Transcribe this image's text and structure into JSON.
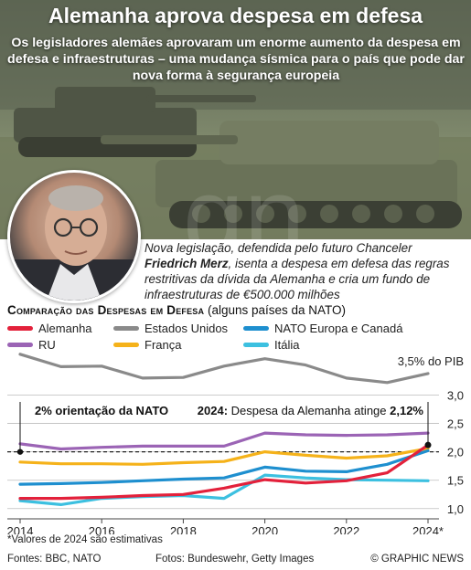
{
  "header": {
    "title": "Alemanha aprova despesa em defesa",
    "subtitle": "Os legisladores alemães aprovaram um enorme aumento da despesa em defesa e infraestruturas – uma mudança sísmica para o país que pode dar nova forma à segurança europeia"
  },
  "caption": {
    "part1": "Nova legislação, defendida pelo futuro Chanceler ",
    "name": "Friedrich Merz",
    "part2": ", isenta a despesa em defesa das regras restritivas da dívida da Alemanha e cria um fundo de infraestruturas de €500.000 milhões"
  },
  "comparison": {
    "title": "Comparação das Despesas em Defesa",
    "subtitle": " (alguns países da NATO)"
  },
  "annotations": {
    "nato_guideline": "2% orientação da NATO",
    "germany_prefix": "2024:",
    "germany_text": " Despesa da Alemanha atinge ",
    "germany_value": "2,12%",
    "gdp_label": "3,5% do PIB"
  },
  "chart_data": {
    "type": "line",
    "x": [
      2014,
      2015,
      2016,
      2017,
      2018,
      2019,
      2020,
      2021,
      2022,
      2023,
      2024
    ],
    "x_ticks": [
      "2014",
      "2016",
      "2018",
      "2020",
      "2022",
      "2024*"
    ],
    "y_ticks": [
      "3,0",
      "2,5",
      "2,0",
      "1,5",
      "1,0"
    ],
    "ylim": [
      0.9,
      3.7
    ],
    "reference_line": 2.0,
    "series": [
      {
        "name": "Alemanha",
        "color": "#e3213b",
        "values": [
          1.18,
          1.18,
          1.2,
          1.23,
          1.25,
          1.36,
          1.51,
          1.45,
          1.49,
          1.63,
          2.12
        ]
      },
      {
        "name": "Estados Unidos",
        "color": "#8a8a8a",
        "values": [
          3.72,
          3.5,
          3.51,
          3.3,
          3.31,
          3.51,
          3.64,
          3.53,
          3.3,
          3.22,
          3.38
        ]
      },
      {
        "name": "NATO Europa e Canadá",
        "color": "#1e8fcf",
        "values": [
          1.43,
          1.44,
          1.46,
          1.49,
          1.52,
          1.54,
          1.73,
          1.66,
          1.65,
          1.78,
          2.02
        ]
      },
      {
        "name": "RU",
        "color": "#9b64b5",
        "values": [
          2.14,
          2.05,
          2.08,
          2.1,
          2.1,
          2.1,
          2.33,
          2.3,
          2.29,
          2.3,
          2.33
        ]
      },
      {
        "name": "França",
        "color": "#f5b21a",
        "values": [
          1.82,
          1.79,
          1.79,
          1.78,
          1.81,
          1.83,
          2.0,
          1.94,
          1.89,
          1.93,
          2.06
        ]
      },
      {
        "name": "Itália",
        "color": "#3cc0e0",
        "values": [
          1.14,
          1.07,
          1.18,
          1.21,
          1.23,
          1.18,
          1.59,
          1.54,
          1.51,
          1.5,
          1.49
        ]
      }
    ]
  },
  "footnote": "*Valores de 2024 são estimativas",
  "footer": {
    "sources": "Fontes: BBC, NATO",
    "photos": "Fotos: Bundeswehr, Getty Images",
    "credit": "© GRAPHIC NEWS"
  }
}
